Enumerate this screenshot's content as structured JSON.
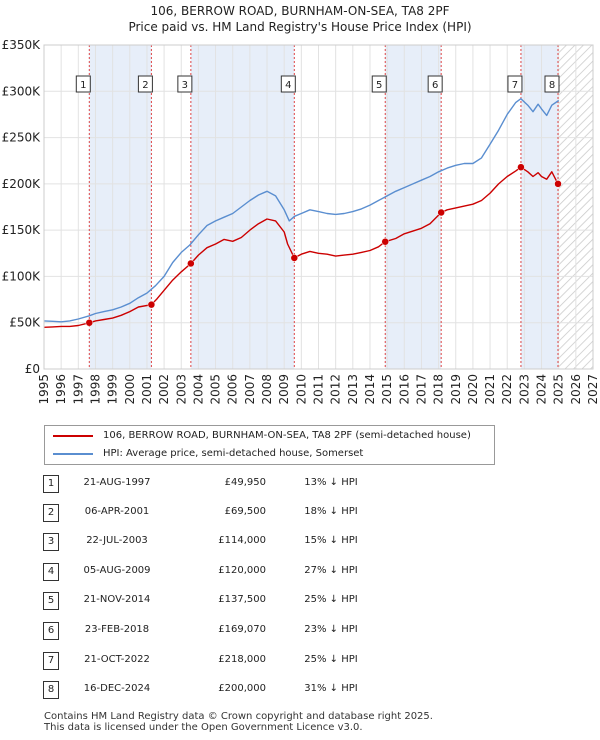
{
  "chart_data": {
    "type": "line",
    "title": "106, BERROW ROAD, BURNHAM-ON-SEA, TA8 2PF",
    "subtitle": "Price paid vs. HM Land Registry's House Price Index (HPI)",
    "xlim": [
      1995,
      2027
    ],
    "ylim": [
      0,
      350000
    ],
    "x_ticks": [
      1995,
      1996,
      1997,
      1998,
      1999,
      2000,
      2001,
      2002,
      2003,
      2004,
      2005,
      2006,
      2007,
      2008,
      2009,
      2010,
      2011,
      2012,
      2013,
      2014,
      2015,
      2016,
      2017,
      2018,
      2019,
      2020,
      2021,
      2022,
      2023,
      2024,
      2025,
      2026,
      2027
    ],
    "y_ticks": [
      {
        "value": 0,
        "label": "£0"
      },
      {
        "value": 50000,
        "label": "£50K"
      },
      {
        "value": 100000,
        "label": "£100K"
      },
      {
        "value": 150000,
        "label": "£150K"
      },
      {
        "value": 200000,
        "label": "£200K"
      },
      {
        "value": 250000,
        "label": "£250K"
      },
      {
        "value": 300000,
        "label": "£300K"
      },
      {
        "value": 350000,
        "label": "£350K"
      }
    ],
    "projection_start": 2025.0,
    "series": [
      {
        "name": "106, BERROW ROAD, BURNHAM-ON-SEA, TA8 2PF (semi-detached house)",
        "color": "#cc0000",
        "x": [
          1995.0,
          1995.5,
          1996.0,
          1996.5,
          1997.0,
          1997.64,
          1998.0,
          1998.5,
          1999.0,
          1999.5,
          2000.0,
          2000.5,
          2001.26,
          2001.6,
          2002.0,
          2002.5,
          2003.0,
          2003.56,
          2004.0,
          2004.5,
          2005.0,
          2005.5,
          2006.0,
          2006.5,
          2007.0,
          2007.5,
          2008.0,
          2008.5,
          2009.0,
          2009.2,
          2009.59,
          2010.0,
          2010.5,
          2011.0,
          2011.5,
          2012.0,
          2012.5,
          2013.0,
          2013.5,
          2014.0,
          2014.5,
          2014.89,
          2015.5,
          2016.0,
          2016.5,
          2017.0,
          2017.5,
          2018.15,
          2018.5,
          2019.0,
          2019.5,
          2020.0,
          2020.5,
          2021.0,
          2021.5,
          2022.0,
          2022.5,
          2022.8,
          2023.2,
          2023.5,
          2023.8,
          2024.0,
          2024.3,
          2024.6,
          2024.96
        ],
        "values": [
          45000,
          45500,
          46000,
          46000,
          47000,
          49950,
          52000,
          53500,
          55000,
          58000,
          62000,
          67000,
          69500,
          76000,
          85000,
          96000,
          105000,
          114000,
          123000,
          131000,
          135000,
          140000,
          138000,
          142000,
          150000,
          157000,
          162000,
          160000,
          148000,
          135000,
          120000,
          124000,
          127000,
          125000,
          124000,
          122000,
          123000,
          124000,
          126000,
          128000,
          132000,
          137500,
          141000,
          146000,
          149000,
          152000,
          157000,
          169070,
          172000,
          174000,
          176000,
          178000,
          182000,
          190000,
          200000,
          208000,
          214000,
          218000,
          213000,
          208000,
          212000,
          208000,
          205000,
          213000,
          200000
        ]
      },
      {
        "name": "HPI: Average price, semi-detached house, Somerset",
        "color": "#5a8ed0",
        "x": [
          1995.0,
          1995.5,
          1996.0,
          1996.5,
          1997.0,
          1997.64,
          1998.0,
          1998.5,
          1999.0,
          1999.5,
          2000.0,
          2000.5,
          2001.0,
          2001.5,
          2002.0,
          2002.5,
          2003.0,
          2003.5,
          2004.0,
          2004.5,
          2005.0,
          2005.5,
          2006.0,
          2006.5,
          2007.0,
          2007.5,
          2008.0,
          2008.5,
          2009.0,
          2009.3,
          2009.6,
          2010.0,
          2010.5,
          2011.0,
          2011.5,
          2012.0,
          2012.5,
          2013.0,
          2013.5,
          2014.0,
          2014.5,
          2015.0,
          2015.5,
          2016.0,
          2016.5,
          2017.0,
          2017.5,
          2018.0,
          2018.5,
          2019.0,
          2019.5,
          2020.0,
          2020.5,
          2021.0,
          2021.5,
          2022.0,
          2022.5,
          2022.8,
          2023.2,
          2023.5,
          2023.8,
          2024.0,
          2024.3,
          2024.6,
          2025.0
        ],
        "values": [
          52000,
          51500,
          51000,
          52000,
          54000,
          57500,
          60000,
          62000,
          64000,
          67000,
          71000,
          77000,
          82000,
          90000,
          100000,
          115000,
          126000,
          134000,
          145000,
          155000,
          160000,
          164000,
          168000,
          175000,
          182000,
          188000,
          192000,
          187000,
          172000,
          160000,
          165000,
          168000,
          172000,
          170000,
          168000,
          167000,
          168000,
          170000,
          173000,
          177000,
          182000,
          187000,
          192000,
          196000,
          200000,
          204000,
          208000,
          213000,
          217000,
          220000,
          222000,
          222000,
          228000,
          243000,
          258000,
          275000,
          288000,
          292000,
          285000,
          278000,
          286000,
          281000,
          274000,
          285000,
          290000
        ]
      }
    ],
    "sales": [
      {
        "num": "1",
        "x": 1997.64,
        "price": 49950
      },
      {
        "num": "2",
        "x": 2001.26,
        "price": 69500
      },
      {
        "num": "3",
        "x": 2003.56,
        "price": 114000
      },
      {
        "num": "4",
        "x": 2009.59,
        "price": 120000
      },
      {
        "num": "5",
        "x": 2014.89,
        "price": 137500
      },
      {
        "num": "6",
        "x": 2018.15,
        "price": 169070
      },
      {
        "num": "7",
        "x": 2022.8,
        "price": 218000
      },
      {
        "num": "8",
        "x": 2024.96,
        "price": 200000
      }
    ],
    "shaded_spans": [
      [
        1997.64,
        2001.26
      ],
      [
        2003.56,
        2009.59
      ],
      [
        2014.89,
        2018.15
      ],
      [
        2022.8,
        2024.96
      ]
    ]
  },
  "legend": {
    "property_label": "106, BERROW ROAD, BURNHAM-ON-SEA, TA8 2PF (semi-detached house)",
    "hpi_label": "HPI: Average price, semi-detached house, Somerset"
  },
  "transactions": [
    {
      "num": "1",
      "date": "21-AUG-1997",
      "price": "£49,950",
      "hpi": "13% ↓ HPI"
    },
    {
      "num": "2",
      "date": "06-APR-2001",
      "price": "£69,500",
      "hpi": "18% ↓ HPI"
    },
    {
      "num": "3",
      "date": "22-JUL-2003",
      "price": "£114,000",
      "hpi": "15% ↓ HPI"
    },
    {
      "num": "4",
      "date": "05-AUG-2009",
      "price": "£120,000",
      "hpi": "27% ↓ HPI"
    },
    {
      "num": "5",
      "date": "21-NOV-2014",
      "price": "£137,500",
      "hpi": "25% ↓ HPI"
    },
    {
      "num": "6",
      "date": "23-FEB-2018",
      "price": "£169,070",
      "hpi": "23% ↓ HPI"
    },
    {
      "num": "7",
      "date": "21-OCT-2022",
      "price": "£218,000",
      "hpi": "25% ↓ HPI"
    },
    {
      "num": "8",
      "date": "16-DEC-2024",
      "price": "£200,000",
      "hpi": "31% ↓ HPI"
    }
  ],
  "footer": {
    "line1": "Contains HM Land Registry data © Crown copyright and database right 2025.",
    "line2": "This data is licensed under the Open Government Licence v3.0."
  }
}
